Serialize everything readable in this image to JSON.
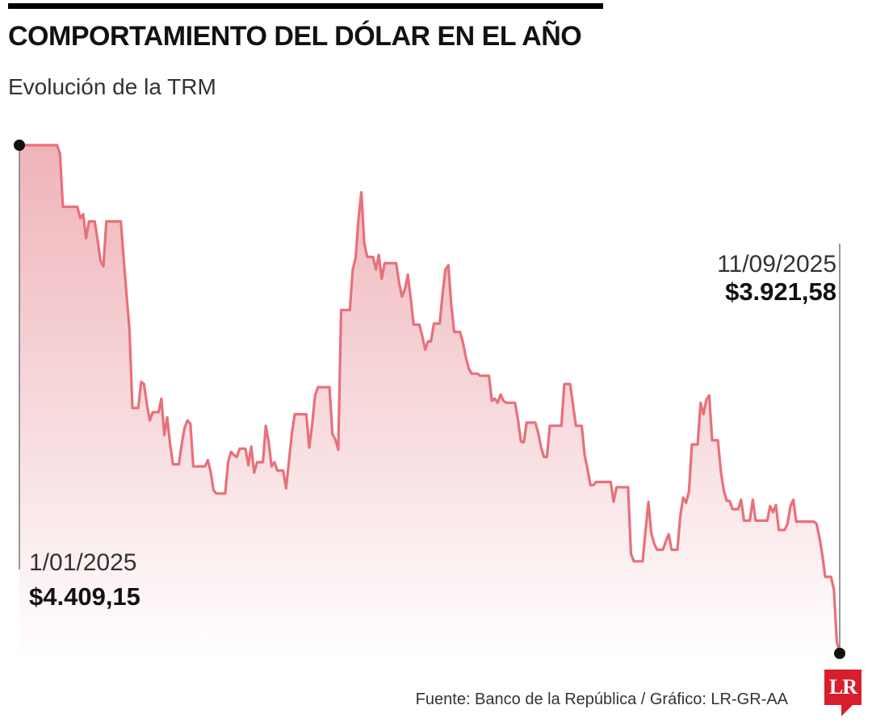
{
  "header": {
    "title": "COMPORTAMIENTO DEL DÓLAR EN EL AÑO",
    "subtitle": "Evolución de la TRM"
  },
  "colors": {
    "line": "#e8707a",
    "area_top": "#eeb0b6",
    "marker": "#111111",
    "logo": "#d81e2d"
  },
  "annotations": {
    "start": {
      "date": "1/01/2025",
      "value": "$4.409,15"
    },
    "end": {
      "date": "11/09/2025",
      "value": "$3.921,58"
    }
  },
  "footer": {
    "source": "Fuente: Banco de la República / Gráfico: LR-GR-AA",
    "logo_text": "LR",
    "logo_icon": "lr-logo-icon"
  },
  "chart_data": {
    "type": "area",
    "title": "COMPORTAMIENTO DEL DÓLAR EN EL AÑO",
    "subtitle": "Evolución de la TRM",
    "xlabel": "",
    "ylabel": "",
    "x_range": [
      "1/01/2025",
      "11/09/2025"
    ],
    "ylim": [
      3921.58,
      4409.15
    ],
    "grid": false,
    "legend": "none",
    "series": [
      {
        "values": [
          4409.15,
          4409.15,
          4409.15,
          4409.15,
          4409.15,
          4409.15,
          4409.15,
          4409.15,
          4409.15,
          4409.15,
          4409.15,
          4409.15,
          4409.15,
          4409.15,
          4401,
          4350,
          4350,
          4350,
          4350,
          4350,
          4350,
          4339,
          4343,
          4320,
          4336,
          4336,
          4336,
          4318,
          4298,
          4293,
          4336,
          4336,
          4336,
          4336,
          4336,
          4336,
          4300,
          4265,
          4232,
          4157,
          4157,
          4157,
          4182,
          4180,
          4160,
          4145,
          4153,
          4153,
          4153,
          4166,
          4131,
          4148,
          4122,
          4103,
          4103,
          4103,
          4122,
          4138,
          4145,
          4142,
          4101,
          4101,
          4101,
          4101,
          4101,
          4107,
          4096,
          4078,
          4075,
          4075,
          4075,
          4075,
          4105,
          4115,
          4112,
          4110,
          4118,
          4118,
          4118,
          4102,
          4120,
          4095,
          4105,
          4105,
          4105,
          4140,
          4125,
          4101,
          4105,
          4097,
          4097,
          4097,
          4080,
          4106,
          4133,
          4151,
          4151,
          4151,
          4151,
          4151,
          4119,
          4141,
          4169,
          4177,
          4177,
          4177,
          4177,
          4177,
          4132,
          4127,
          4117,
          4251,
          4251,
          4251,
          4251,
          4290,
          4301,
          4339,
          4364,
          4315,
          4302,
          4302,
          4302,
          4290,
          4304,
          4281,
          4296,
          4296,
          4296,
          4296,
          4296,
          4277,
          4264,
          4271,
          4285,
          4262,
          4237,
          4237,
          4237,
          4226,
          4213,
          4221,
          4221,
          4238,
          4238,
          4238,
          4267,
          4290,
          4294,
          4256,
          4230,
          4230,
          4230,
          4220,
          4206,
          4195,
          4190,
          4190,
          4190,
          4188,
          4188,
          4188,
          4188,
          4164,
          4166,
          4162,
          4170,
          4164,
          4162,
          4162,
          4162,
          4162,
          4146,
          4125,
          4124,
          4143,
          4143,
          4143,
          4143,
          4133,
          4119,
          4110,
          4110,
          4140,
          4140,
          4140,
          4140,
          4140,
          4180,
          4180,
          4180,
          4160,
          4140,
          4140,
          4140,
          4112,
          4098,
          4083,
          4083,
          4086,
          4086,
          4086,
          4086,
          4086,
          4086,
          4067,
          4081,
          4081,
          4081,
          4081,
          4081,
          4017,
          4010,
          4010,
          4010,
          4010,
          4039,
          4067,
          4037,
          4027,
          4021,
          4021,
          4021,
          4029,
          4036,
          4021,
          4021,
          4021,
          4053,
          4071,
          4066,
          4077,
          4122,
          4122,
          4122,
          4162,
          4151,
          4165,
          4169,
          4126,
          4126,
          4126,
          4096,
          4078,
          4068,
          4068,
          4060,
          4060,
          4060,
          4069,
          4049,
          4049,
          4049,
          4069,
          4049,
          4049,
          4049,
          4049,
          4049,
          4063,
          4057,
          4064,
          4040,
          4040,
          4040,
          4046,
          4063,
          4069,
          4048,
          4048,
          4048,
          4048,
          4048,
          4048,
          4048,
          4046,
          4033,
          4016,
          3995,
          3995,
          3995,
          3983,
          3933,
          3921.58
        ]
      }
    ]
  }
}
